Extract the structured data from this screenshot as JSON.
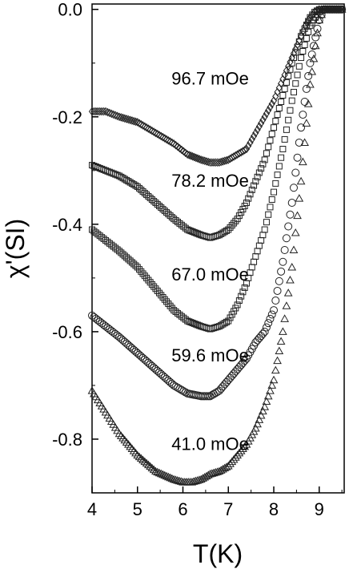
{
  "chart_data": {
    "type": "scatter",
    "title": "",
    "xlabel": "T(K)",
    "ylabel": "χ'(SI)",
    "xlim": [
      4,
      9.55
    ],
    "ylim": [
      -0.9,
      0.01
    ],
    "grid": false,
    "xticks": [
      4,
      5,
      6,
      7,
      8,
      9
    ],
    "yticks": [
      0.0,
      -0.2,
      -0.4,
      -0.6,
      -0.8
    ],
    "xtick_labels": [
      "4",
      "5",
      "6",
      "7",
      "8",
      "9"
    ],
    "ytick_labels": [
      "0.0",
      "-0.2",
      "-0.4",
      "-0.6",
      "-0.8"
    ],
    "series": [
      {
        "name": "96.7 mOe",
        "marker": "diamond",
        "x": [
          4.0,
          4.3,
          4.6,
          5.0,
          5.4,
          5.8,
          6.1,
          6.4,
          6.6,
          6.8,
          7.0,
          7.2,
          7.4,
          7.6,
          7.8,
          8.0,
          8.2,
          8.4,
          8.6,
          8.7,
          8.8,
          8.9,
          9.0,
          9.1,
          9.3,
          9.5
        ],
        "y": [
          -0.19,
          -0.19,
          -0.2,
          -0.21,
          -0.23,
          -0.25,
          -0.27,
          -0.28,
          -0.285,
          -0.285,
          -0.28,
          -0.27,
          -0.26,
          -0.23,
          -0.2,
          -0.17,
          -0.13,
          -0.09,
          -0.05,
          -0.03,
          -0.015,
          -0.005,
          0.0,
          0.0,
          0.0,
          0.0
        ]
      },
      {
        "name": "78.2 mOe",
        "marker": "square",
        "x": [
          4.0,
          4.3,
          4.6,
          5.0,
          5.4,
          5.8,
          6.1,
          6.4,
          6.6,
          6.8,
          7.0,
          7.2,
          7.4,
          7.6,
          7.8,
          8.0,
          8.2,
          8.4,
          8.6,
          8.8,
          8.9,
          9.0,
          9.1,
          9.3,
          9.5
        ],
        "y": [
          -0.29,
          -0.3,
          -0.31,
          -0.33,
          -0.36,
          -0.39,
          -0.41,
          -0.42,
          -0.425,
          -0.42,
          -0.41,
          -0.39,
          -0.36,
          -0.32,
          -0.28,
          -0.22,
          -0.16,
          -0.1,
          -0.05,
          -0.015,
          -0.005,
          0.0,
          0.0,
          0.0,
          0.0
        ]
      },
      {
        "name": "67.0 mOe",
        "marker": "square",
        "x": [
          4.0,
          4.3,
          4.6,
          5.0,
          5.4,
          5.8,
          6.1,
          6.4,
          6.6,
          6.8,
          7.0,
          7.2,
          7.4,
          7.6,
          7.8,
          8.0,
          8.2,
          8.4,
          8.6,
          8.8,
          9.0,
          9.1,
          9.3,
          9.5
        ],
        "y": [
          -0.41,
          -0.43,
          -0.45,
          -0.48,
          -0.52,
          -0.56,
          -0.58,
          -0.59,
          -0.595,
          -0.59,
          -0.58,
          -0.55,
          -0.51,
          -0.46,
          -0.41,
          -0.34,
          -0.26,
          -0.17,
          -0.09,
          -0.03,
          -0.005,
          0.0,
          0.0,
          0.0
        ]
      },
      {
        "name": "59.6 mOe",
        "marker": "circle",
        "x": [
          4.0,
          4.3,
          4.6,
          5.0,
          5.4,
          5.8,
          6.1,
          6.4,
          6.6,
          6.8,
          7.0,
          7.2,
          7.4,
          7.6,
          7.8,
          8.0,
          8.2,
          8.4,
          8.6,
          8.8,
          9.0,
          9.1,
          9.3,
          9.5
        ],
        "y": [
          -0.57,
          -0.59,
          -0.61,
          -0.64,
          -0.67,
          -0.7,
          -0.715,
          -0.72,
          -0.72,
          -0.71,
          -0.69,
          -0.67,
          -0.65,
          -0.62,
          -0.6,
          -0.56,
          -0.47,
          -0.36,
          -0.22,
          -0.1,
          -0.02,
          0.0,
          0.0,
          0.0
        ]
      },
      {
        "name": "41.0 mOe",
        "marker": "triangle",
        "x": [
          4.0,
          4.3,
          4.6,
          5.0,
          5.4,
          5.8,
          6.0,
          6.2,
          6.4,
          6.6,
          6.8,
          7.0,
          7.2,
          7.4,
          7.6,
          7.8,
          8.0,
          8.2,
          8.4,
          8.6,
          8.8,
          9.0,
          9.1,
          9.3,
          9.5
        ],
        "y": [
          -0.71,
          -0.75,
          -0.79,
          -0.83,
          -0.86,
          -0.875,
          -0.88,
          -0.88,
          -0.875,
          -0.865,
          -0.86,
          -0.85,
          -0.83,
          -0.81,
          -0.78,
          -0.74,
          -0.69,
          -0.6,
          -0.48,
          -0.32,
          -0.14,
          -0.02,
          0.0,
          0.0,
          0.0
        ]
      }
    ]
  }
}
